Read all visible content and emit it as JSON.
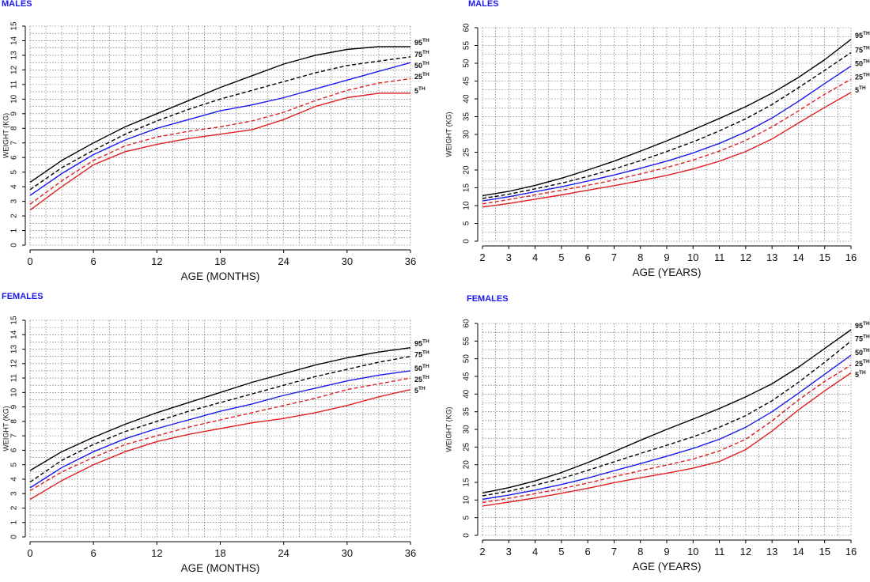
{
  "colors": {
    "black": "#000000",
    "blue": "#1a1aee",
    "red": "#e02020",
    "grid": "#555555"
  },
  "chart_data": [
    {
      "type": "line",
      "title": "MALES",
      "xlabel": "AGE (MONTHS)",
      "ylabel": "WEIGHT (KG)",
      "xlim": [
        0,
        36
      ],
      "ylim": [
        0,
        15
      ],
      "x_ticks": [
        0,
        6,
        12,
        18,
        24,
        30,
        36
      ],
      "y_ticks": [
        0,
        1,
        2,
        3,
        4,
        5,
        6,
        7,
        8,
        9,
        10,
        11,
        12,
        13,
        14,
        15
      ],
      "x_minor_step": 1.5,
      "y_minor_step": 0.5,
      "grid": true,
      "series": [
        {
          "name": "95",
          "suffix": "TH",
          "color": "black",
          "dash": false,
          "x": [
            0,
            3,
            6,
            9,
            12,
            15,
            18,
            21,
            24,
            27,
            30,
            33,
            36
          ],
          "y": [
            4.3,
            5.8,
            7.0,
            8.1,
            9.0,
            9.9,
            10.8,
            11.6,
            12.4,
            13.0,
            13.4,
            13.6,
            13.6
          ]
        },
        {
          "name": "75",
          "suffix": "TH",
          "color": "black",
          "dash": true,
          "x": [
            0,
            3,
            6,
            9,
            12,
            15,
            18,
            21,
            24,
            27,
            30,
            33,
            36
          ],
          "y": [
            3.8,
            5.3,
            6.5,
            7.6,
            8.5,
            9.3,
            10.0,
            10.6,
            11.2,
            11.8,
            12.3,
            12.6,
            12.9
          ]
        },
        {
          "name": "50",
          "suffix": "TH",
          "color": "blue",
          "dash": false,
          "x": [
            0,
            3,
            6,
            9,
            12,
            15,
            18,
            21,
            24,
            27,
            30,
            33,
            36
          ],
          "y": [
            3.4,
            4.9,
            6.2,
            7.2,
            8.0,
            8.6,
            9.2,
            9.6,
            10.1,
            10.7,
            11.3,
            11.9,
            12.5
          ]
        },
        {
          "name": "25",
          "suffix": "TH",
          "color": "red",
          "dash": true,
          "x": [
            0,
            3,
            6,
            9,
            12,
            15,
            18,
            21,
            24,
            27,
            30,
            33,
            36
          ],
          "y": [
            2.8,
            4.4,
            5.8,
            6.8,
            7.4,
            7.8,
            8.1,
            8.5,
            9.1,
            9.9,
            10.6,
            11.1,
            11.4
          ]
        },
        {
          "name": "5",
          "suffix": "TH",
          "color": "red",
          "dash": false,
          "x": [
            0,
            3,
            6,
            9,
            12,
            15,
            18,
            21,
            24,
            27,
            30,
            33,
            36
          ],
          "y": [
            2.4,
            4.0,
            5.5,
            6.4,
            6.9,
            7.3,
            7.6,
            7.9,
            8.6,
            9.5,
            10.1,
            10.4,
            10.4
          ]
        }
      ]
    },
    {
      "type": "line",
      "title": "MALES",
      "xlabel": "AGE (YEARS)",
      "ylabel": "WEIGHT (KG)",
      "xlim": [
        2,
        16
      ],
      "ylim": [
        0,
        60
      ],
      "x_ticks": [
        2,
        3,
        4,
        5,
        6,
        7,
        8,
        9,
        10,
        11,
        12,
        13,
        14,
        15,
        16
      ],
      "y_ticks": [
        0,
        5,
        10,
        15,
        20,
        25,
        30,
        35,
        40,
        45,
        50,
        55,
        60
      ],
      "x_minor_step": 0.5,
      "y_minor_step": 2.5,
      "grid": true,
      "series": [
        {
          "name": "95",
          "suffix": "TH",
          "color": "black",
          "dash": false,
          "x": [
            2,
            3,
            4,
            5,
            6,
            7,
            8,
            9,
            10,
            11,
            12,
            13,
            14,
            15,
            16
          ],
          "y": [
            12.8,
            14.0,
            15.7,
            17.7,
            20.0,
            22.5,
            25.3,
            28.2,
            31.3,
            34.5,
            37.8,
            41.6,
            46.0,
            51.0,
            56.7
          ]
        },
        {
          "name": "75",
          "suffix": "TH",
          "color": "black",
          "dash": true,
          "x": [
            2,
            3,
            4,
            5,
            6,
            7,
            8,
            9,
            10,
            11,
            12,
            13,
            14,
            15,
            16
          ],
          "y": [
            12.0,
            13.2,
            14.7,
            16.3,
            18.2,
            20.3,
            22.6,
            25.2,
            27.9,
            31.0,
            34.4,
            38.4,
            43.1,
            48.0,
            53.0
          ]
        },
        {
          "name": "50",
          "suffix": "TH",
          "color": "blue",
          "dash": false,
          "x": [
            2,
            3,
            4,
            5,
            6,
            7,
            8,
            9,
            10,
            11,
            12,
            13,
            14,
            15,
            16
          ],
          "y": [
            11.3,
            12.5,
            13.9,
            15.3,
            16.9,
            18.6,
            20.5,
            22.5,
            24.8,
            27.5,
            30.7,
            34.6,
            39.3,
            44.3,
            49.2
          ]
        },
        {
          "name": "25",
          "suffix": "TH",
          "color": "red",
          "dash": true,
          "x": [
            2,
            3,
            4,
            5,
            6,
            7,
            8,
            9,
            10,
            11,
            12,
            13,
            14,
            15,
            16
          ],
          "y": [
            10.5,
            11.7,
            13.0,
            14.3,
            15.7,
            17.2,
            18.9,
            20.7,
            22.8,
            25.3,
            28.3,
            32.1,
            36.6,
            41.3,
            45.5
          ]
        },
        {
          "name": "5",
          "suffix": "TH",
          "color": "red",
          "dash": false,
          "x": [
            2,
            3,
            4,
            5,
            6,
            7,
            8,
            9,
            10,
            11,
            12,
            13,
            14,
            15,
            16
          ],
          "y": [
            9.6,
            10.6,
            11.8,
            13.0,
            14.3,
            15.6,
            17.0,
            18.5,
            20.3,
            22.5,
            25.2,
            28.7,
            33.2,
            37.6,
            41.8
          ]
        }
      ]
    },
    {
      "type": "line",
      "title": "FEMALES",
      "xlabel": "AGE (MONTHS)",
      "ylabel": "WEIGHT (KG)",
      "xlim": [
        0,
        36
      ],
      "ylim": [
        0,
        15
      ],
      "x_ticks": [
        0,
        6,
        12,
        18,
        24,
        30,
        36
      ],
      "y_ticks": [
        0,
        1,
        2,
        3,
        4,
        5,
        6,
        7,
        8,
        9,
        10,
        11,
        12,
        13,
        14,
        15
      ],
      "x_minor_step": 1.5,
      "y_minor_step": 0.5,
      "grid": true,
      "series": [
        {
          "name": "95",
          "suffix": "TH",
          "color": "black",
          "dash": false,
          "x": [
            0,
            3,
            6,
            9,
            12,
            15,
            18,
            21,
            24,
            27,
            30,
            33,
            36
          ],
          "y": [
            4.6,
            5.9,
            6.9,
            7.8,
            8.6,
            9.3,
            10.0,
            10.7,
            11.3,
            11.9,
            12.4,
            12.8,
            13.1
          ]
        },
        {
          "name": "75",
          "suffix": "TH",
          "color": "black",
          "dash": true,
          "x": [
            0,
            3,
            6,
            9,
            12,
            15,
            18,
            21,
            24,
            27,
            30,
            33,
            36
          ],
          "y": [
            3.8,
            5.3,
            6.4,
            7.3,
            8.0,
            8.7,
            9.3,
            9.9,
            10.5,
            11.1,
            11.6,
            12.1,
            12.5
          ]
        },
        {
          "name": "50",
          "suffix": "TH",
          "color": "blue",
          "dash": false,
          "x": [
            0,
            3,
            6,
            9,
            12,
            15,
            18,
            21,
            24,
            27,
            30,
            33,
            36
          ],
          "y": [
            3.4,
            4.8,
            5.9,
            6.8,
            7.5,
            8.1,
            8.7,
            9.2,
            9.8,
            10.3,
            10.8,
            11.2,
            11.5
          ]
        },
        {
          "name": "25",
          "suffix": "TH",
          "color": "red",
          "dash": true,
          "x": [
            0,
            3,
            6,
            9,
            12,
            15,
            18,
            21,
            24,
            27,
            30,
            33,
            36
          ],
          "y": [
            3.2,
            4.5,
            5.5,
            6.4,
            7.0,
            7.6,
            8.1,
            8.6,
            9.1,
            9.6,
            10.2,
            10.6,
            11.0
          ]
        },
        {
          "name": "5",
          "suffix": "TH",
          "color": "red",
          "dash": false,
          "x": [
            0,
            3,
            6,
            9,
            12,
            15,
            18,
            21,
            24,
            27,
            30,
            33,
            36
          ],
          "y": [
            2.6,
            3.9,
            5.0,
            5.9,
            6.6,
            7.1,
            7.5,
            7.9,
            8.2,
            8.6,
            9.1,
            9.7,
            10.2
          ]
        }
      ]
    },
    {
      "type": "line",
      "title": "FEMALES",
      "xlabel": "AGE (YEARS)",
      "ylabel": "WEIGHT (KG)",
      "xlim": [
        2,
        16
      ],
      "ylim": [
        0,
        60
      ],
      "x_ticks": [
        2,
        3,
        4,
        5,
        6,
        7,
        8,
        9,
        10,
        11,
        12,
        13,
        14,
        15,
        16
      ],
      "y_ticks": [
        0,
        5,
        10,
        15,
        20,
        25,
        30,
        35,
        40,
        45,
        50,
        55,
        60
      ],
      "x_minor_step": 0.5,
      "y_minor_step": 2.5,
      "grid": true,
      "series": [
        {
          "name": "95",
          "suffix": "TH",
          "color": "black",
          "dash": false,
          "x": [
            2,
            3,
            4,
            5,
            6,
            7,
            8,
            9,
            10,
            11,
            12,
            13,
            14,
            15,
            16
          ],
          "y": [
            12.0,
            13.5,
            15.4,
            17.8,
            20.6,
            23.7,
            26.9,
            30.0,
            32.9,
            35.9,
            39.2,
            42.9,
            47.6,
            52.9,
            58.2
          ]
        },
        {
          "name": "75",
          "suffix": "TH",
          "color": "black",
          "dash": true,
          "x": [
            2,
            3,
            4,
            5,
            6,
            7,
            8,
            9,
            10,
            11,
            12,
            13,
            14,
            15,
            16
          ],
          "y": [
            11.2,
            12.5,
            14.2,
            16.1,
            18.4,
            20.8,
            23.2,
            25.5,
            27.9,
            30.6,
            33.9,
            38.1,
            43.3,
            49.0,
            55.0
          ]
        },
        {
          "name": "50",
          "suffix": "TH",
          "color": "blue",
          "dash": false,
          "x": [
            2,
            3,
            4,
            5,
            6,
            7,
            8,
            9,
            10,
            11,
            12,
            13,
            14,
            15,
            16
          ],
          "y": [
            10.2,
            11.4,
            12.8,
            14.4,
            16.2,
            18.3,
            20.3,
            22.4,
            24.6,
            27.2,
            30.6,
            35.0,
            40.2,
            45.6,
            51.0
          ]
        },
        {
          "name": "25",
          "suffix": "TH",
          "color": "red",
          "dash": true,
          "x": [
            2,
            3,
            4,
            5,
            6,
            7,
            8,
            9,
            10,
            11,
            12,
            13,
            14,
            15,
            16
          ],
          "y": [
            9.3,
            10.5,
            11.8,
            13.2,
            14.8,
            16.6,
            18.3,
            19.9,
            21.6,
            23.9,
            27.2,
            32.4,
            38.3,
            43.6,
            48.2
          ]
        },
        {
          "name": "5",
          "suffix": "TH",
          "color": "red",
          "dash": false,
          "x": [
            2,
            3,
            4,
            5,
            6,
            7,
            8,
            9,
            10,
            11,
            12,
            13,
            14,
            15,
            16
          ],
          "y": [
            8.3,
            9.4,
            10.6,
            11.9,
            13.3,
            14.9,
            16.3,
            17.6,
            19.0,
            20.9,
            24.3,
            29.5,
            35.5,
            40.9,
            46.0
          ]
        }
      ]
    }
  ]
}
